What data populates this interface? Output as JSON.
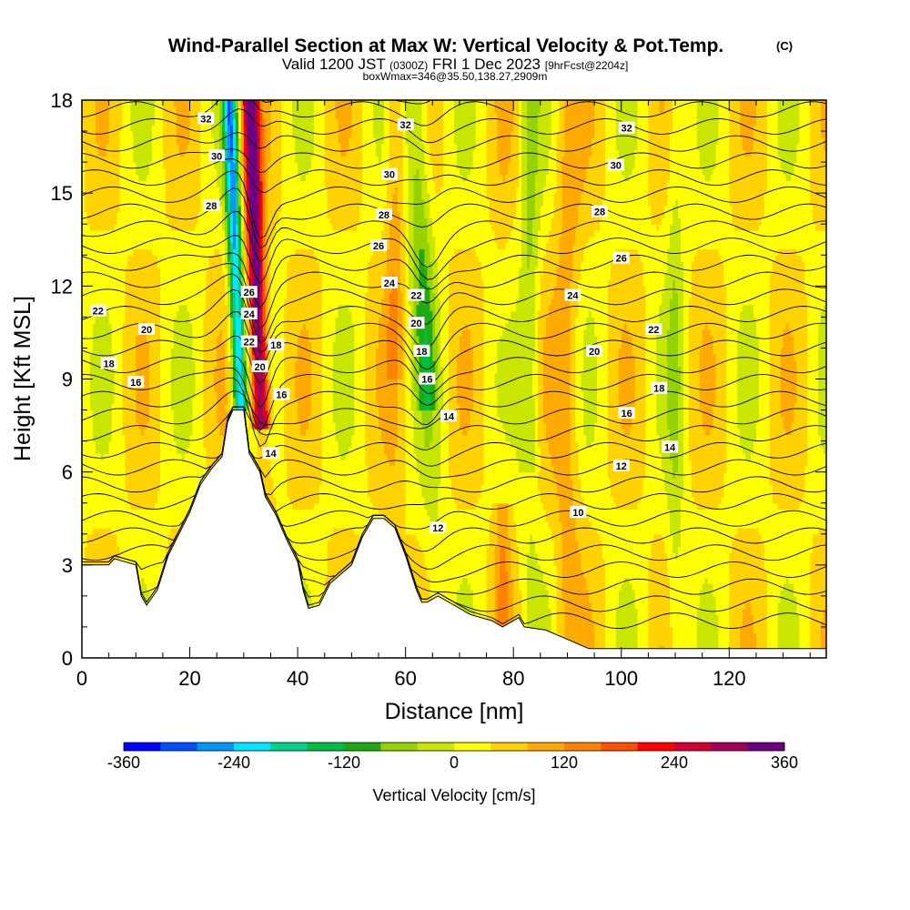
{
  "chart_data": {
    "type": "heatmap",
    "title": {
      "main": "Wind-Parallel Section at Max W: Vertical Velocity & Pot.Temp.",
      "copyright": "(C)",
      "valid_prefix": "Valid 1200 JST",
      "valid_zulu": "(0300Z)",
      "valid_date": "FRI 1 Dec 2023",
      "forecast": "[9hrFcst@2204z]",
      "boxwmax": "boxWmax=346@35.50,138.27,2909m"
    },
    "xlabel": "Distance [nm]",
    "ylabel": "Height [Kft MSL]",
    "xlim": [
      0,
      138
    ],
    "ylim": [
      0,
      18
    ],
    "x_ticks": [
      0,
      20,
      40,
      60,
      80,
      100,
      120
    ],
    "y_ticks": [
      0,
      3,
      6,
      9,
      12,
      15,
      18
    ],
    "colorbar": {
      "title": "Vertical Velocity [cm/s]",
      "range": [
        -360,
        360
      ],
      "tick_values": [
        -360,
        -240,
        -120,
        0,
        120,
        240,
        360
      ],
      "colors": [
        "#0000ff",
        "#0050ff",
        "#0096ff",
        "#00e6ff",
        "#00d28c",
        "#00be46",
        "#1eaa14",
        "#96d200",
        "#c8e600",
        "#ffff00",
        "#ffd200",
        "#ffaa00",
        "#ff8200",
        "#ff5000",
        "#ff0000",
        "#d20032",
        "#a0005a",
        "#6e0082"
      ]
    },
    "terrain": [
      [
        0,
        3.0
      ],
      [
        5,
        3.0
      ],
      [
        6,
        3.2
      ],
      [
        10,
        3.0
      ],
      [
        11,
        2.0
      ],
      [
        12,
        1.7
      ],
      [
        14,
        2.2
      ],
      [
        16,
        3.3
      ],
      [
        18,
        4.0
      ],
      [
        20,
        4.7
      ],
      [
        22,
        5.6
      ],
      [
        24,
        6.1
      ],
      [
        26,
        6.5
      ],
      [
        27,
        7.6
      ],
      [
        28,
        8.0
      ],
      [
        30,
        8.0
      ],
      [
        31,
        6.6
      ],
      [
        33,
        6.0
      ],
      [
        34,
        5.2
      ],
      [
        36,
        4.6
      ],
      [
        38,
        3.8
      ],
      [
        40,
        3.1
      ],
      [
        41,
        2.2
      ],
      [
        42,
        1.6
      ],
      [
        44,
        1.7
      ],
      [
        46,
        2.4
      ],
      [
        48,
        2.7
      ],
      [
        50,
        3.0
      ],
      [
        52,
        3.9
      ],
      [
        54,
        4.5
      ],
      [
        56,
        4.5
      ],
      [
        58,
        4.2
      ],
      [
        60,
        3.3
      ],
      [
        62,
        2.2
      ],
      [
        63,
        1.8
      ],
      [
        64,
        1.8
      ],
      [
        66,
        2.0
      ],
      [
        70,
        1.6
      ],
      [
        72,
        1.4
      ],
      [
        76,
        1.2
      ],
      [
        78,
        1.0
      ],
      [
        81,
        1.3
      ],
      [
        82,
        1.0
      ],
      [
        86,
        0.9
      ],
      [
        90,
        0.6
      ],
      [
        94,
        0.3
      ],
      [
        138,
        0.3
      ]
    ],
    "theta_labels": [
      {
        "text": "32",
        "x": 23,
        "y": 17.4
      },
      {
        "text": "30",
        "x": 25,
        "y": 16.2
      },
      {
        "text": "28",
        "x": 24,
        "y": 14.6
      },
      {
        "text": "22",
        "x": 3,
        "y": 11.2
      },
      {
        "text": "20",
        "x": 12,
        "y": 10.6
      },
      {
        "text": "18",
        "x": 5,
        "y": 9.5
      },
      {
        "text": "16",
        "x": 10,
        "y": 8.9
      },
      {
        "text": "26",
        "x": 31,
        "y": 11.8
      },
      {
        "text": "24",
        "x": 31,
        "y": 11.1
      },
      {
        "text": "22",
        "x": 31,
        "y": 10.2
      },
      {
        "text": "20",
        "x": 33,
        "y": 9.4
      },
      {
        "text": "18",
        "x": 36,
        "y": 10.1
      },
      {
        "text": "16",
        "x": 37,
        "y": 8.5
      },
      {
        "text": "14",
        "x": 35,
        "y": 6.6
      },
      {
        "text": "32",
        "x": 60,
        "y": 17.2
      },
      {
        "text": "30",
        "x": 57,
        "y": 15.6
      },
      {
        "text": "28",
        "x": 56,
        "y": 14.3
      },
      {
        "text": "26",
        "x": 55,
        "y": 13.3
      },
      {
        "text": "24",
        "x": 57,
        "y": 12.1
      },
      {
        "text": "22",
        "x": 62,
        "y": 11.7
      },
      {
        "text": "20",
        "x": 62,
        "y": 10.8
      },
      {
        "text": "18",
        "x": 63,
        "y": 9.9
      },
      {
        "text": "16",
        "x": 64,
        "y": 9.0
      },
      {
        "text": "14",
        "x": 68,
        "y": 7.8
      },
      {
        "text": "12",
        "x": 66,
        "y": 4.2
      },
      {
        "text": "10",
        "x": 92,
        "y": 4.7
      },
      {
        "text": "12",
        "x": 100,
        "y": 6.2
      },
      {
        "text": "14",
        "x": 109,
        "y": 6.8
      },
      {
        "text": "16",
        "x": 101,
        "y": 7.9
      },
      {
        "text": "18",
        "x": 107,
        "y": 8.7
      },
      {
        "text": "20",
        "x": 95,
        "y": 9.9
      },
      {
        "text": "22",
        "x": 106,
        "y": 10.6
      },
      {
        "text": "24",
        "x": 91,
        "y": 11.7
      },
      {
        "text": "26",
        "x": 100,
        "y": 12.9
      },
      {
        "text": "28",
        "x": 96,
        "y": 14.4
      },
      {
        "text": "30",
        "x": 99,
        "y": 15.9
      },
      {
        "text": "32",
        "x": 101,
        "y": 17.1
      }
    ]
  }
}
